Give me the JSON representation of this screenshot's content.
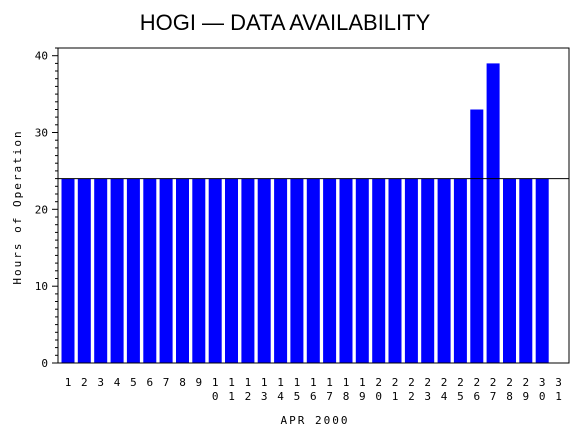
{
  "chart_data": {
    "type": "bar",
    "title": "HOGI — DATA AVAILABILITY",
    "xlabel": "APR 2000",
    "ylabel": "Hours of Operation",
    "ylim": [
      0,
      41
    ],
    "yticks": [
      0,
      10,
      20,
      30,
      40
    ],
    "reference_line": 24,
    "categories": [
      "1",
      "2",
      "3",
      "4",
      "5",
      "6",
      "7",
      "8",
      "9",
      "10",
      "11",
      "12",
      "13",
      "14",
      "15",
      "16",
      "17",
      "18",
      "19",
      "20",
      "21",
      "22",
      "23",
      "24",
      "25",
      "26",
      "27",
      "28",
      "29",
      "30",
      "31"
    ],
    "values": [
      24,
      24,
      24,
      24,
      24,
      24,
      24,
      24,
      24,
      24,
      24,
      24,
      24,
      24,
      24,
      24,
      24,
      24,
      24,
      24,
      24,
      24,
      24,
      24,
      24,
      33,
      39,
      24,
      24,
      24,
      0
    ],
    "bar_color": "#0000ff",
    "grid": false
  }
}
